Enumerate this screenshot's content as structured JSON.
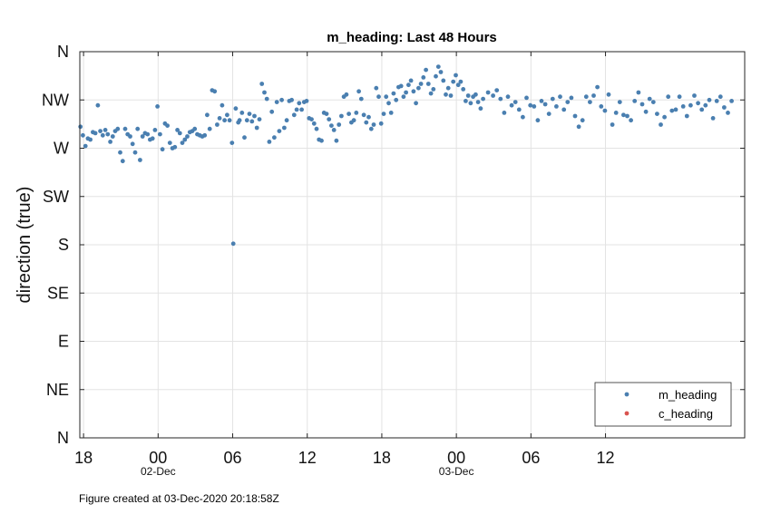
{
  "chart_data": {
    "type": "scatter",
    "title": "m_heading: Last 48 Hours",
    "xlabel": "",
    "ylabel": "direction (true)",
    "ylim": [
      0,
      360
    ],
    "xlim_hours": [
      17.7,
      71.2
    ],
    "y_ticks": [
      {
        "value": 0,
        "label": "N"
      },
      {
        "value": 45,
        "label": "NE"
      },
      {
        "value": 90,
        "label": "E"
      },
      {
        "value": 135,
        "label": "SE"
      },
      {
        "value": 180,
        "label": "S"
      },
      {
        "value": 225,
        "label": "SW"
      },
      {
        "value": 270,
        "label": "W"
      },
      {
        "value": 315,
        "label": "NW"
      },
      {
        "value": 360,
        "label": "N"
      }
    ],
    "x_ticks": [
      {
        "hour": 18,
        "label": "18"
      },
      {
        "hour": 24,
        "label": "00"
      },
      {
        "hour": 30,
        "label": "06"
      },
      {
        "hour": 36,
        "label": "12"
      },
      {
        "hour": 42,
        "label": "18"
      },
      {
        "hour": 48,
        "label": "00"
      },
      {
        "hour": 54,
        "label": "06"
      },
      {
        "hour": 60,
        "label": "12"
      }
    ],
    "date_labels": [
      {
        "hour": 24,
        "label": "02-Dec"
      },
      {
        "hour": 48,
        "label": "03-Dec"
      }
    ],
    "grid": true,
    "legend_position": "bottom-right",
    "series": [
      {
        "name": "m_heading",
        "color": "#4a7fb0",
        "points": [
          [
            17.75,
            290
          ],
          [
            17.95,
            282
          ],
          [
            18.15,
            272
          ],
          [
            18.35,
            279
          ],
          [
            18.55,
            278
          ],
          [
            18.75,
            285
          ],
          [
            18.95,
            284
          ],
          [
            19.15,
            310
          ],
          [
            19.35,
            286
          ],
          [
            19.55,
            282
          ],
          [
            19.75,
            287
          ],
          [
            19.95,
            283
          ],
          [
            20.15,
            276
          ],
          [
            20.35,
            281
          ],
          [
            20.55,
            286
          ],
          [
            20.75,
            288
          ],
          [
            20.95,
            266
          ],
          [
            21.15,
            258
          ],
          [
            21.35,
            288
          ],
          [
            21.55,
            283
          ],
          [
            21.75,
            281
          ],
          [
            21.95,
            274
          ],
          [
            22.15,
            266
          ],
          [
            22.35,
            288
          ],
          [
            22.55,
            259
          ],
          [
            22.75,
            281
          ],
          [
            22.95,
            284
          ],
          [
            23.15,
            283
          ],
          [
            23.35,
            278
          ],
          [
            23.55,
            279
          ],
          [
            23.75,
            287
          ],
          [
            23.95,
            309
          ],
          [
            24.15,
            283
          ],
          [
            24.35,
            269
          ],
          [
            24.55,
            293
          ],
          [
            24.75,
            291
          ],
          [
            24.95,
            275
          ],
          [
            25.15,
            270
          ],
          [
            25.35,
            271
          ],
          [
            25.55,
            287
          ],
          [
            25.75,
            284
          ],
          [
            25.95,
            275
          ],
          [
            26.15,
            278
          ],
          [
            26.35,
            281
          ],
          [
            26.55,
            285
          ],
          [
            26.75,
            286
          ],
          [
            26.95,
            288
          ],
          [
            27.15,
            283
          ],
          [
            27.35,
            282
          ],
          [
            27.55,
            281
          ],
          [
            27.75,
            282
          ],
          [
            27.95,
            301
          ],
          [
            28.15,
            288
          ],
          [
            28.35,
            324
          ],
          [
            28.55,
            323
          ],
          [
            28.75,
            292
          ],
          [
            28.95,
            298
          ],
          [
            29.15,
            310
          ],
          [
            29.35,
            296
          ],
          [
            29.55,
            301
          ],
          [
            29.75,
            296
          ],
          [
            29.95,
            275
          ],
          [
            30.05,
            181
          ],
          [
            30.25,
            307
          ],
          [
            30.45,
            294
          ],
          [
            30.55,
            296
          ],
          [
            30.75,
            303
          ],
          [
            30.95,
            280
          ],
          [
            31.15,
            296
          ],
          [
            31.35,
            302
          ],
          [
            31.55,
            295
          ],
          [
            31.75,
            300
          ],
          [
            31.95,
            289
          ],
          [
            32.15,
            297
          ],
          [
            32.35,
            330
          ],
          [
            32.55,
            322
          ],
          [
            32.75,
            316
          ],
          [
            32.95,
            276
          ],
          [
            33.15,
            304
          ],
          [
            33.35,
            280
          ],
          [
            33.55,
            313
          ],
          [
            33.75,
            286
          ],
          [
            33.95,
            315
          ],
          [
            34.15,
            289
          ],
          [
            34.35,
            296
          ],
          [
            34.55,
            314
          ],
          [
            34.75,
            315
          ],
          [
            34.95,
            301
          ],
          [
            35.15,
            306
          ],
          [
            35.35,
            312
          ],
          [
            35.55,
            306
          ],
          [
            35.75,
            313
          ],
          [
            35.95,
            314
          ],
          [
            36.15,
            298
          ],
          [
            36.35,
            297
          ],
          [
            36.55,
            293
          ],
          [
            36.75,
            288
          ],
          [
            36.95,
            278
          ],
          [
            37.15,
            277
          ],
          [
            37.35,
            303
          ],
          [
            37.55,
            302
          ],
          [
            37.75,
            297
          ],
          [
            37.95,
            291
          ],
          [
            38.15,
            287
          ],
          [
            38.35,
            277
          ],
          [
            38.55,
            292
          ],
          [
            38.75,
            300
          ],
          [
            38.95,
            318
          ],
          [
            39.15,
            320
          ],
          [
            39.35,
            302
          ],
          [
            39.55,
            294
          ],
          [
            39.75,
            296
          ],
          [
            39.95,
            303
          ],
          [
            40.15,
            323
          ],
          [
            40.35,
            316
          ],
          [
            40.55,
            301
          ],
          [
            40.75,
            294
          ],
          [
            40.95,
            299
          ],
          [
            41.15,
            288
          ],
          [
            41.35,
            292
          ],
          [
            41.55,
            326
          ],
          [
            41.75,
            318
          ],
          [
            41.95,
            293
          ],
          [
            42.15,
            302
          ],
          [
            42.35,
            318
          ],
          [
            42.55,
            312
          ],
          [
            42.75,
            303
          ],
          [
            42.95,
            321
          ],
          [
            43.15,
            315
          ],
          [
            43.35,
            327
          ],
          [
            43.55,
            328
          ],
          [
            43.75,
            318
          ],
          [
            43.95,
            322
          ],
          [
            44.15,
            329
          ],
          [
            44.35,
            333
          ],
          [
            44.55,
            323
          ],
          [
            44.75,
            312
          ],
          [
            44.95,
            326
          ],
          [
            45.15,
            330
          ],
          [
            45.35,
            336
          ],
          [
            45.55,
            343
          ],
          [
            45.75,
            330
          ],
          [
            45.95,
            321
          ],
          [
            46.15,
            325
          ],
          [
            46.35,
            337
          ],
          [
            46.55,
            346
          ],
          [
            46.75,
            341
          ],
          [
            46.95,
            333
          ],
          [
            47.15,
            320
          ],
          [
            47.35,
            326
          ],
          [
            47.55,
            319
          ],
          [
            47.75,
            332
          ],
          [
            47.95,
            338
          ],
          [
            48.15,
            329
          ],
          [
            48.35,
            332
          ],
          [
            48.55,
            325
          ],
          [
            48.75,
            314
          ],
          [
            48.95,
            319
          ],
          [
            49.15,
            312
          ],
          [
            49.35,
            318
          ],
          [
            49.55,
            320
          ],
          [
            49.75,
            313
          ],
          [
            49.95,
            307
          ],
          [
            50.15,
            316
          ],
          [
            50.55,
            322
          ],
          [
            50.95,
            319
          ],
          [
            51.25,
            324
          ],
          [
            51.55,
            316
          ],
          [
            51.85,
            303
          ],
          [
            52.15,
            318
          ],
          [
            52.45,
            310
          ],
          [
            52.75,
            313
          ],
          [
            53.05,
            306
          ],
          [
            53.35,
            299
          ],
          [
            53.65,
            317
          ],
          [
            53.95,
            310
          ],
          [
            54.25,
            309
          ],
          [
            54.55,
            296
          ],
          [
            54.85,
            314
          ],
          [
            55.15,
            311
          ],
          [
            55.45,
            302
          ],
          [
            55.75,
            316
          ],
          [
            56.05,
            309
          ],
          [
            56.35,
            318
          ],
          [
            56.65,
            306
          ],
          [
            56.95,
            313
          ],
          [
            57.25,
            317
          ],
          [
            57.55,
            300
          ],
          [
            57.85,
            290
          ],
          [
            58.15,
            296
          ],
          [
            58.45,
            318
          ],
          [
            58.75,
            313
          ],
          [
            59.05,
            319
          ],
          [
            59.35,
            327
          ],
          [
            59.65,
            309
          ],
          [
            59.95,
            305
          ],
          [
            60.25,
            320
          ],
          [
            60.55,
            292
          ],
          [
            60.85,
            303
          ],
          [
            61.15,
            313
          ],
          [
            61.45,
            301
          ],
          [
            61.75,
            300
          ],
          [
            62.05,
            296
          ],
          [
            62.35,
            314
          ],
          [
            62.65,
            322
          ],
          [
            62.95,
            311
          ],
          [
            63.25,
            304
          ],
          [
            63.55,
            316
          ],
          [
            63.85,
            313
          ],
          [
            64.15,
            302
          ],
          [
            64.45,
            292
          ],
          [
            64.75,
            299
          ],
          [
            65.05,
            318
          ],
          [
            65.35,
            305
          ],
          [
            65.65,
            306
          ],
          [
            65.95,
            318
          ],
          [
            66.25,
            309
          ],
          [
            66.55,
            300
          ],
          [
            66.85,
            310
          ],
          [
            67.15,
            319
          ],
          [
            67.45,
            312
          ],
          [
            67.75,
            306
          ],
          [
            68.05,
            310
          ],
          [
            68.35,
            315
          ],
          [
            68.65,
            298
          ],
          [
            68.95,
            314
          ],
          [
            69.25,
            318
          ],
          [
            69.55,
            308
          ],
          [
            69.85,
            303
          ],
          [
            70.15,
            314
          ]
        ]
      },
      {
        "name": "c_heading",
        "color": "#d9534f",
        "points": []
      }
    ]
  },
  "footer": "Figure created at 03-Dec-2020 20:18:58Z"
}
